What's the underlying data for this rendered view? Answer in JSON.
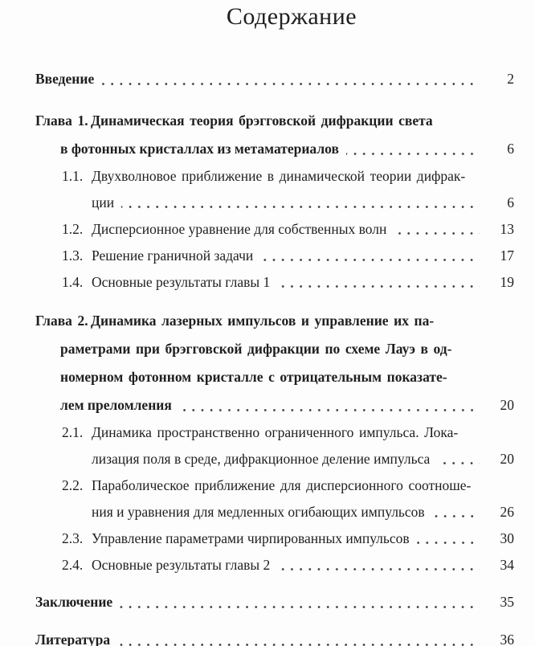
{
  "page": {
    "title": "Содержание"
  },
  "colors": {
    "background": "#fdfdfd",
    "text": "#1f1f1f",
    "leader_dot": "#3d3d3d"
  },
  "toc": {
    "entries": [
      {
        "type": "plain",
        "bold": true,
        "lines": [
          "Введение"
        ],
        "page": "2"
      },
      {
        "type": "chapter",
        "bold": true,
        "spacing": "lg",
        "label": "Глава 1.",
        "lines": [
          "Динамическая теория брэгговской дифракции света",
          "в фотонных кристаллах из метаматериалов"
        ],
        "page": "6"
      },
      {
        "type": "section",
        "bold": false,
        "label": "1.1.",
        "lines": [
          "Двухволновое приближение в динамической теории дифрак-",
          "ции"
        ],
        "page": "6"
      },
      {
        "type": "section",
        "bold": false,
        "label": "1.2.",
        "lines": [
          "Дисперсионное уравнение для собственных волн"
        ],
        "page": "13"
      },
      {
        "type": "section",
        "bold": false,
        "label": "1.3.",
        "lines": [
          "Решение граничной задачи"
        ],
        "page": "17"
      },
      {
        "type": "section",
        "bold": false,
        "label": "1.4.",
        "lines": [
          "Основные результаты главы 1"
        ],
        "page": "19"
      },
      {
        "type": "chapter",
        "bold": true,
        "spacing": "md",
        "label": "Глава 2.",
        "lines": [
          "Динамика лазерных импульсов и управление их па-",
          "раметрами при брэгговской дифракции по схеме Лауэ в од-",
          "номерном фотонном кристалле с отрицательным показате-",
          "лем преломления"
        ],
        "page": "20"
      },
      {
        "type": "section",
        "bold": false,
        "label": "2.1.",
        "lines": [
          "Динамика пространственно ограниченного импульса. Лока-",
          "лизация поля в среде, дифракционное деление импульса"
        ],
        "page": "20"
      },
      {
        "type": "section",
        "bold": false,
        "label": "2.2.",
        "lines": [
          "Параболическое приближение для дисперсионного соотноше-",
          "ния и уравнения для медленных огибающих импульсов"
        ],
        "page": "26"
      },
      {
        "type": "section",
        "bold": false,
        "label": "2.3.",
        "lines": [
          "Управление параметрами чирпированных импульсов"
        ],
        "page": "30"
      },
      {
        "type": "section",
        "bold": false,
        "label": "2.4.",
        "lines": [
          "Основные результаты главы 2"
        ],
        "page": "34"
      },
      {
        "type": "plain",
        "bold": true,
        "spacing": "sm",
        "lines": [
          "Заключение"
        ],
        "page": "35"
      },
      {
        "type": "plain",
        "bold": true,
        "spacing": "sm",
        "lines": [
          "Литература"
        ],
        "page": "36"
      }
    ]
  }
}
